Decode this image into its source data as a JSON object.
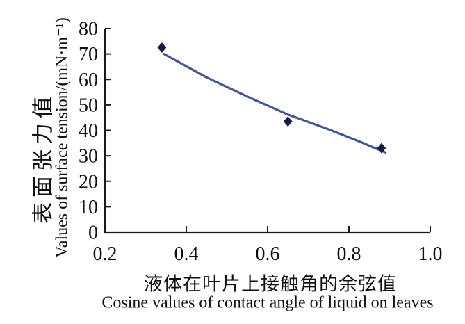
{
  "chart_data": {
    "type": "scatter",
    "title": "",
    "x_axis": {
      "label_zh": "液体在叶片上接触角的余弦值",
      "label_en": "Cosine values of contact angle of liquid on leaves",
      "min": 0.2,
      "max": 1.0,
      "tick_labels": [
        "0.2",
        "0.4",
        "0.6",
        "0.8",
        "1.0"
      ],
      "tick_values": [
        0.2,
        0.4,
        0.6,
        0.8,
        1.0
      ],
      "tick_marks": [
        0.4,
        0.6,
        0.8,
        1.0
      ]
    },
    "y_axis": {
      "label_zh": "表面张力值",
      "label_en": "Values of surface tension/(mN·m⁻¹)",
      "min": 0,
      "max": 80,
      "tick_labels": [
        "0",
        "10",
        "20",
        "30",
        "40",
        "50",
        "60",
        "70",
        "80"
      ],
      "tick_values": [
        0,
        10,
        20,
        30,
        40,
        50,
        60,
        70,
        80
      ]
    },
    "points": [
      {
        "x": 0.34,
        "y": 72.5
      },
      {
        "x": 0.65,
        "y": 43.5
      },
      {
        "x": 0.88,
        "y": 33.0
      }
    ],
    "marker": {
      "shape": "diamond",
      "color": "#191942",
      "size": 7.5
    },
    "trendline": {
      "color": "#47558f",
      "width": 3.2,
      "points": [
        [
          0.345,
          70.0
        ],
        [
          0.45,
          60.8
        ],
        [
          0.55,
          53.3
        ],
        [
          0.65,
          46.2
        ],
        [
          0.75,
          40.4
        ],
        [
          0.82,
          36.0
        ],
        [
          0.89,
          31.3
        ]
      ]
    },
    "grid": false,
    "legend": null,
    "colors": {
      "axis": "#1a1a1a",
      "tick_text": "#111111",
      "background": "#ffffff"
    }
  }
}
